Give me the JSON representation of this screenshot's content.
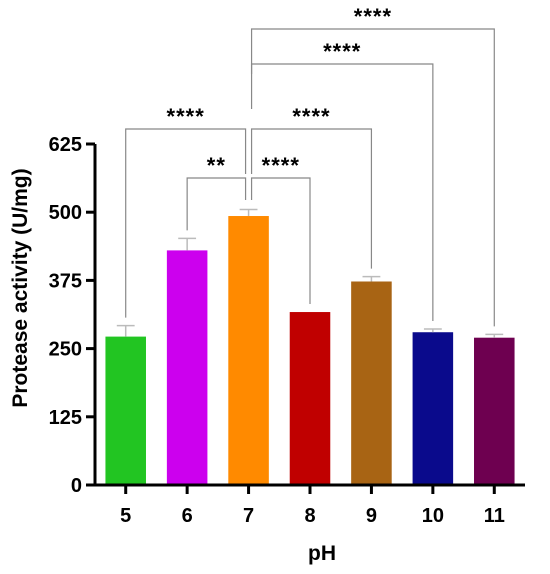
{
  "chart_data": {
    "type": "bar",
    "title": "",
    "xlabel": "pH",
    "ylabel": "Protease activity (U/mg)",
    "categories": [
      "5",
      "6",
      "7",
      "8",
      "9",
      "10",
      "11"
    ],
    "values": [
      272,
      430,
      493,
      317,
      373,
      280,
      270
    ],
    "errors": [
      20,
      22,
      12,
      0,
      9,
      6,
      6
    ],
    "colors": [
      "#22c522",
      "#cc00ee",
      "#ff8a00",
      "#c00000",
      "#a86414",
      "#0a0a8c",
      "#6e0050"
    ],
    "ylim": [
      0,
      625
    ],
    "yticks": [
      0,
      125,
      250,
      375,
      500,
      625
    ],
    "legend": "none",
    "grid": false,
    "significance": [
      {
        "from": "6",
        "to": "7",
        "label": "**"
      },
      {
        "from": "7",
        "to": "8",
        "label": "****"
      },
      {
        "from": "5",
        "to": "7",
        "label": "****"
      },
      {
        "from": "7",
        "to": "9",
        "label": "****"
      },
      {
        "from": "7",
        "to": "10",
        "label": "****"
      },
      {
        "from": "7",
        "to": "11",
        "label": "****"
      }
    ]
  }
}
